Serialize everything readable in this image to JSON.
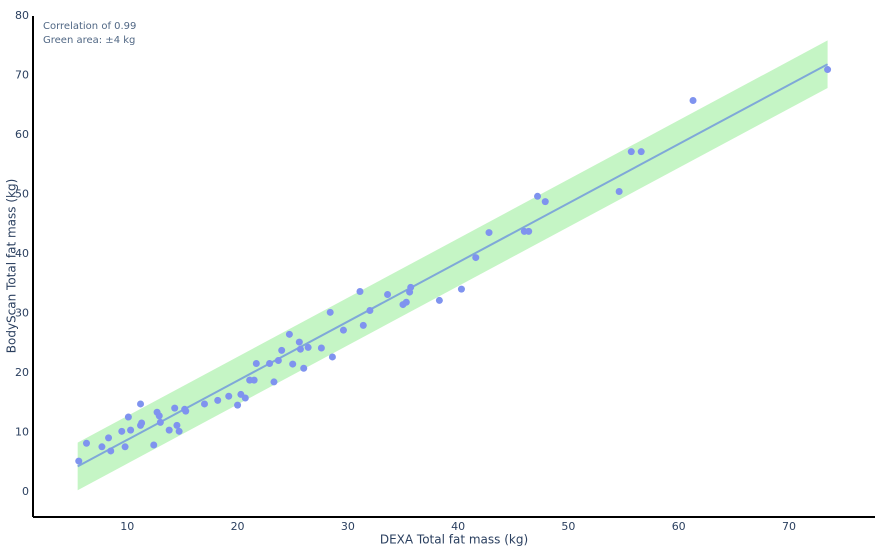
{
  "chart_data": {
    "type": "scatter",
    "x_label": "DEXA Total fat mass (kg)",
    "y_label": "BodyScan Total fat mass (kg)",
    "annotations": [
      "Correlation of 0.99",
      "Green area: ±4 kg"
    ],
    "xlim": [
      1.45,
      77.8
    ],
    "ylim": [
      -4.2,
      80
    ],
    "xticks": [
      10,
      20,
      30,
      40,
      50,
      60,
      70
    ],
    "yticks": [
      0,
      10,
      20,
      30,
      40,
      50,
      60,
      70,
      80
    ],
    "grid": false,
    "area": {
      "color": "#c5f5c5",
      "x": [
        5.5,
        73.5
      ],
      "lower": [
        0.3,
        67.9
      ],
      "upper": [
        8.3,
        75.9
      ]
    },
    "fit_line": {
      "color": "#7fa8d8",
      "x": [
        5.5,
        73.5
      ],
      "y": [
        4.3,
        71.9
      ]
    },
    "series": [
      {
        "color": "#7f93ef",
        "x": [
          5.6,
          6.3,
          7.7,
          8.3,
          8.5,
          9.5,
          9.8,
          10.1,
          10.3,
          11.2,
          11.3,
          11.2,
          12.4,
          12.7,
          12.9,
          13.0,
          13.8,
          14.3,
          14.5,
          14.7,
          15.2,
          15.3,
          17.0,
          18.2,
          19.2,
          20.0,
          20.3,
          20.7,
          21.1,
          21.5,
          21.7,
          22.9,
          23.3,
          23.7,
          24.0,
          24.7,
          25.0,
          25.6,
          25.7,
          26.0,
          26.4,
          27.6,
          28.4,
          28.6,
          29.6,
          31.1,
          31.4,
          32.0,
          33.6,
          35.0,
          35.3,
          35.6,
          35.7,
          38.3,
          40.3,
          41.6,
          42.8,
          46.0,
          46.4,
          47.2,
          47.9,
          54.6,
          55.7,
          56.6,
          61.3,
          73.5
        ],
        "values": [
          5.2,
          8.2,
          7.6,
          9.1,
          6.9,
          10.2,
          7.6,
          12.6,
          10.4,
          11.2,
          11.6,
          14.8,
          7.9,
          13.4,
          12.8,
          11.7,
          10.4,
          14.1,
          11.2,
          10.2,
          13.9,
          13.6,
          14.8,
          15.4,
          16.1,
          14.6,
          16.4,
          15.8,
          18.8,
          18.8,
          21.6,
          21.6,
          18.5,
          22.1,
          23.8,
          26.5,
          21.5,
          25.2,
          24.0,
          20.8,
          24.3,
          24.2,
          30.2,
          22.7,
          27.2,
          33.7,
          28.0,
          30.5,
          33.2,
          31.5,
          31.9,
          33.6,
          34.4,
          32.2,
          34.1,
          39.4,
          43.6,
          43.8,
          43.8,
          49.7,
          48.8,
          50.5,
          57.2,
          57.2,
          65.8,
          71.0
        ]
      }
    ]
  }
}
